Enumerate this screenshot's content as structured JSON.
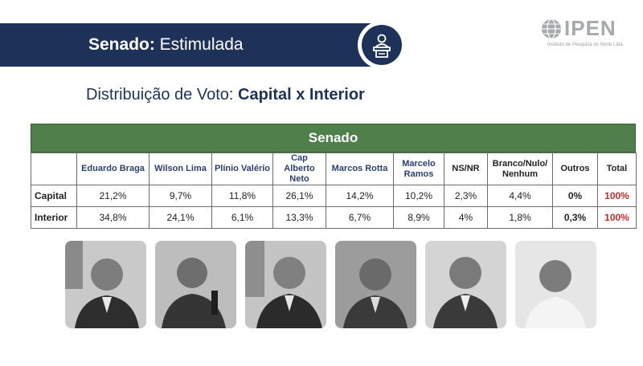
{
  "header": {
    "title_bold": "Senado:",
    "title_rest": " Estimulada",
    "icon": "podium-speaker-icon"
  },
  "logo": {
    "text": "IPEN",
    "subtext": "Instituto de Pesquisa do Norte Ltda.",
    "icon": "globe-icon"
  },
  "subtitle": {
    "regular": "Distribuição de Voto: ",
    "bold": "Capital x Interior"
  },
  "table": {
    "title": "Senado",
    "columns": [
      "Eduardo Braga",
      "Wilson Lima",
      "Plínio Valério",
      "Cap Alberto Neto",
      "Marcos Rotta",
      "Marcelo Ramos",
      "NS/NR",
      "Branco/Nulo/ Nenhum",
      "Outros",
      "Total"
    ],
    "rows": [
      {
        "label": "Capital",
        "values": [
          "21,2%",
          "9,7%",
          "11,8%",
          "26,1%",
          "14,2%",
          "10,2%",
          "2,3%",
          "4,4%",
          "0%",
          "100%"
        ]
      },
      {
        "label": "Interior",
        "values": [
          "34,8%",
          "24,1%",
          "6,1%",
          "13,3%",
          "6,7%",
          "8,9%",
          "4%",
          "1,8%",
          "0,3%",
          "100%"
        ]
      }
    ]
  },
  "photos": [
    "candidate-photo-1",
    "candidate-photo-2",
    "candidate-photo-3",
    "candidate-photo-4",
    "candidate-photo-5",
    "candidate-photo-6"
  ],
  "colors": {
    "navy": "#1e3259",
    "table_header_green": "#4f7f4a",
    "total_red": "#cc2a2a",
    "candidate_header_blue": "#2b3f74"
  }
}
